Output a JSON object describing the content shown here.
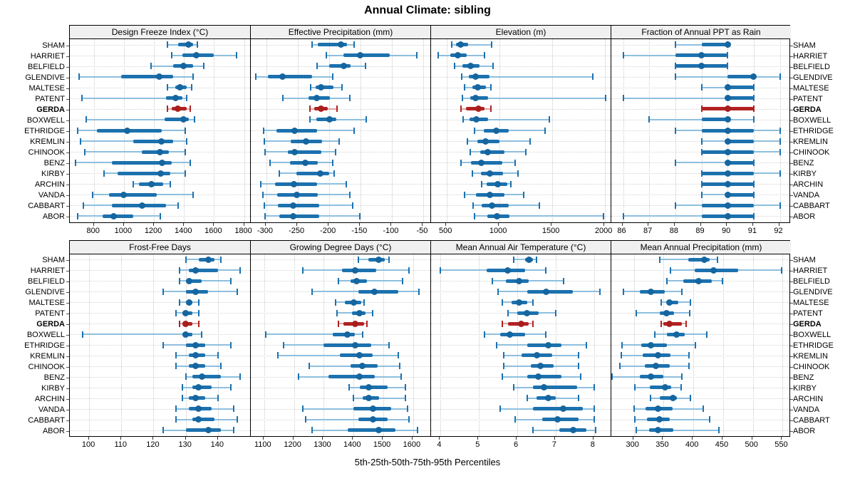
{
  "title": "Annual Climate: sibling",
  "caption": "5th-25th-50th-75th-95th Percentiles",
  "highlight_station": "GERDA",
  "stations": [
    "SHAM",
    "HARRIET",
    "BELFIELD",
    "GLENDIVE",
    "MALTESE",
    "PATENT",
    "GERDA",
    "BOXWELL",
    "ETHRIDGE",
    "KREMLIN",
    "CHINOOK",
    "BENZ",
    "KIRBY",
    "ARCHIN",
    "VANDA",
    "CABBART",
    "ABOR"
  ],
  "colors": {
    "blue": "#1c71ae",
    "blue_light": "#8ebfdf",
    "blue_dot": "#15659f",
    "red": "#b22222",
    "red_light": "#dca3a3",
    "red_dot": "#a81e1e",
    "header_bg": "#f0f0f0",
    "grid": "#c9c9c9"
  },
  "chart_data": {
    "type": "dot-whisker-trellis",
    "percentiles": [
      "5th",
      "25th",
      "50th",
      "75th",
      "95th"
    ],
    "legend_position": "none",
    "grid": "dotted",
    "panels": [
      {
        "title": "Design Freeze Index (°C)",
        "grid_row": 0,
        "grid_col": 0,
        "ticks": [
          800,
          1000,
          1200,
          1400,
          1600,
          1800
        ],
        "domain": [
          640,
          1840
        ],
        "series": [
          [
            1290,
            1360,
            1430,
            1460,
            1490
          ],
          [
            1320,
            1390,
            1480,
            1600,
            1750
          ],
          [
            1180,
            1330,
            1395,
            1460,
            1530
          ],
          [
            700,
            980,
            1235,
            1330,
            1460
          ],
          [
            1290,
            1340,
            1375,
            1420,
            1450
          ],
          [
            720,
            1280,
            1345,
            1390,
            1420
          ],
          [
            1290,
            1320,
            1360,
            1420,
            1440
          ],
          [
            750,
            1270,
            1395,
            1430,
            1470
          ],
          [
            690,
            820,
            1020,
            1250,
            1410
          ],
          [
            710,
            1060,
            1250,
            1330,
            1420
          ],
          [
            740,
            1120,
            1240,
            1300,
            1410
          ],
          [
            680,
            920,
            1255,
            1320,
            1440
          ],
          [
            870,
            960,
            1245,
            1310,
            1410
          ],
          [
            1060,
            1100,
            1185,
            1260,
            1310
          ],
          [
            790,
            900,
            1000,
            1220,
            1460
          ],
          [
            730,
            920,
            1120,
            1280,
            1360
          ],
          [
            690,
            860,
            930,
            1060,
            1240
          ]
        ]
      },
      {
        "title": "Effective Precipitation (mm)",
        "grid_row": 0,
        "grid_col": 1,
        "ticks": [
          -300,
          -250,
          -200,
          -150,
          -100,
          -50
        ],
        "domain": [
          -325,
          -38
        ],
        "series": [
          [
            -227,
            -218,
            -181,
            -172,
            -161
          ],
          [
            -205,
            -178,
            -151,
            -104,
            -61
          ],
          [
            -219,
            -200,
            -177,
            -166,
            -142
          ],
          [
            -317,
            -298,
            -275,
            -228,
            -195
          ],
          [
            -230,
            -222,
            -213,
            -193,
            -180
          ],
          [
            -274,
            -233,
            -220,
            -199,
            -167
          ],
          [
            -231,
            -224,
            -213,
            -202,
            -188
          ],
          [
            -231,
            -221,
            -200,
            -189,
            -141
          ],
          [
            -305,
            -284,
            -255,
            -219,
            -161
          ],
          [
            -303,
            -262,
            -237,
            -211,
            -184
          ],
          [
            -302,
            -266,
            -255,
            -213,
            -190
          ],
          [
            -294,
            -263,
            -238,
            -218,
            -195
          ],
          [
            -280,
            -252,
            -214,
            -200,
            -192
          ],
          [
            -309,
            -286,
            -256,
            -219,
            -173
          ],
          [
            -306,
            -283,
            -252,
            -218,
            -167
          ],
          [
            -303,
            -282,
            -257,
            -216,
            -163
          ],
          [
            -302,
            -280,
            -257,
            -216,
            -151
          ]
        ]
      },
      {
        "title": "Elevation (m)",
        "grid_row": 0,
        "grid_col": 2,
        "ticks": [
          500,
          1000,
          1500,
          2000
        ],
        "domain": [
          350,
          2060
        ],
        "series": [
          [
            545,
            585,
            630,
            700,
            925
          ],
          [
            420,
            530,
            605,
            690,
            855
          ],
          [
            575,
            650,
            725,
            810,
            935
          ],
          [
            640,
            710,
            775,
            905,
            1885
          ],
          [
            665,
            745,
            790,
            870,
            920
          ],
          [
            645,
            720,
            775,
            890,
            2005
          ],
          [
            635,
            680,
            800,
            855,
            915
          ],
          [
            655,
            715,
            780,
            890,
            1475
          ],
          [
            760,
            850,
            970,
            1085,
            1430
          ],
          [
            695,
            790,
            870,
            1000,
            1290
          ],
          [
            720,
            815,
            885,
            1045,
            1250
          ],
          [
            635,
            730,
            825,
            1025,
            1145
          ],
          [
            740,
            820,
            910,
            1030,
            1175
          ],
          [
            830,
            880,
            980,
            1070,
            1105
          ],
          [
            670,
            775,
            910,
            1045,
            1230
          ],
          [
            750,
            830,
            925,
            1085,
            1375
          ],
          [
            765,
            885,
            975,
            1095,
            1985
          ]
        ]
      },
      {
        "title": "Fraction of Annual PPT as Rain",
        "grid_row": 0,
        "grid_col": 3,
        "ticks": [
          86,
          87,
          88,
          89,
          90,
          91,
          92
        ],
        "domain": [
          85.55,
          92.45
        ],
        "series": [
          [
            88,
            89,
            90,
            90,
            90
          ],
          [
            86,
            88,
            89,
            90,
            90
          ],
          [
            88,
            88,
            89,
            90,
            90
          ],
          [
            88,
            90,
            91,
            91,
            92
          ],
          [
            89,
            90,
            90,
            91,
            91
          ],
          [
            86,
            90,
            90,
            91,
            91
          ],
          [
            89,
            89,
            90,
            91,
            91
          ],
          [
            87,
            89,
            90,
            90,
            91
          ],
          [
            88,
            89,
            90,
            91,
            92
          ],
          [
            89,
            90,
            90,
            91,
            92
          ],
          [
            89,
            89,
            90,
            91,
            92
          ],
          [
            88,
            90,
            90,
            91,
            91
          ],
          [
            89,
            89,
            90,
            91,
            92
          ],
          [
            89,
            89,
            90,
            91,
            91
          ],
          [
            89,
            90,
            90,
            91,
            91
          ],
          [
            88,
            89,
            90,
            91,
            92
          ],
          [
            86,
            89,
            90,
            91,
            91
          ]
        ]
      },
      {
        "title": "Frost-Free Days",
        "grid_row": 1,
        "grid_col": 0,
        "ticks": [
          100,
          110,
          120,
          130,
          140
        ],
        "domain": [
          94,
          150
        ],
        "series": [
          [
            130,
            134,
            137,
            139,
            141
          ],
          [
            128,
            131,
            133,
            140,
            147
          ],
          [
            128,
            130,
            131,
            135,
            144
          ],
          [
            123,
            130,
            133,
            137,
            146
          ],
          [
            128,
            130,
            131,
            132,
            134
          ],
          [
            127,
            129,
            130,
            132,
            134
          ],
          [
            128,
            129,
            130,
            132,
            134
          ],
          [
            98,
            129,
            130,
            132,
            135
          ],
          [
            123,
            130,
            133,
            136,
            144
          ],
          [
            127,
            131,
            133,
            136,
            140
          ],
          [
            127,
            131,
            133,
            136,
            141
          ],
          [
            130,
            132,
            135,
            141,
            147
          ],
          [
            129,
            132,
            134,
            138,
            144
          ],
          [
            129,
            131,
            133,
            136,
            140
          ],
          [
            127,
            131,
            134,
            138,
            145
          ],
          [
            127,
            132,
            134,
            139,
            146
          ],
          [
            123,
            130,
            137,
            141,
            145
          ]
        ]
      },
      {
        "title": "Growing Degree Days (°C)",
        "grid_row": 1,
        "grid_col": 1,
        "ticks": [
          1100,
          1200,
          1300,
          1400,
          1500,
          1600
        ],
        "domain": [
          1055,
          1660
        ],
        "series": [
          [
            1415,
            1450,
            1485,
            1505,
            1520
          ],
          [
            1230,
            1360,
            1405,
            1475,
            1585
          ],
          [
            1350,
            1390,
            1410,
            1445,
            1565
          ],
          [
            1260,
            1415,
            1470,
            1550,
            1620
          ],
          [
            1340,
            1370,
            1400,
            1425,
            1435
          ],
          [
            1345,
            1395,
            1420,
            1440,
            1465
          ],
          [
            1350,
            1365,
            1405,
            1435,
            1445
          ],
          [
            1105,
            1330,
            1380,
            1405,
            1430
          ],
          [
            1165,
            1300,
            1405,
            1460,
            1520
          ],
          [
            1145,
            1355,
            1420,
            1465,
            1550
          ],
          [
            1250,
            1390,
            1430,
            1480,
            1555
          ],
          [
            1215,
            1315,
            1420,
            1470,
            1560
          ],
          [
            1385,
            1420,
            1450,
            1515,
            1575
          ],
          [
            1400,
            1430,
            1450,
            1485,
            1575
          ],
          [
            1230,
            1400,
            1465,
            1525,
            1580
          ],
          [
            1240,
            1415,
            1465,
            1515,
            1585
          ],
          [
            1260,
            1380,
            1485,
            1540,
            1615
          ]
        ]
      },
      {
        "title": "Mean Annual Air Temperature (°C)",
        "grid_row": 1,
        "grid_col": 2,
        "ticks": [
          4,
          5,
          6,
          7,
          8
        ],
        "domain": [
          3.75,
          8.45
        ],
        "series": [
          [
            5.9,
            6.2,
            6.3,
            6.4,
            6.5
          ],
          [
            4.0,
            5.2,
            5.75,
            6.2,
            6.75
          ],
          [
            5.35,
            5.7,
            6.05,
            6.3,
            7.2
          ],
          [
            5.5,
            6.25,
            6.75,
            7.45,
            8.15
          ],
          [
            5.6,
            5.85,
            6.05,
            6.25,
            6.4
          ],
          [
            5.75,
            6.0,
            6.25,
            6.55,
            7.0
          ],
          [
            5.6,
            5.75,
            6.1,
            6.3,
            6.4
          ],
          [
            5.15,
            5.55,
            5.8,
            6.2,
            6.75
          ],
          [
            5.45,
            6.25,
            6.8,
            7.15,
            7.8
          ],
          [
            5.65,
            6.1,
            6.5,
            6.9,
            7.6
          ],
          [
            5.65,
            6.35,
            6.6,
            6.95,
            7.6
          ],
          [
            5.6,
            6.25,
            6.55,
            7.15,
            7.65
          ],
          [
            5.9,
            6.4,
            6.7,
            7.55,
            8.0
          ],
          [
            6.25,
            6.5,
            6.8,
            7.0,
            7.6
          ],
          [
            5.55,
            6.4,
            7.2,
            7.7,
            8.0
          ],
          [
            5.95,
            6.65,
            7.05,
            7.6,
            8.0
          ],
          [
            6.4,
            7.1,
            7.45,
            7.8,
            8.05
          ]
        ]
      },
      {
        "title": "Mean Annual Precipitation (mm)",
        "grid_row": 1,
        "grid_col": 3,
        "ticks": [
          300,
          350,
          400,
          450,
          500,
          550
        ],
        "domain": [
          262,
          565
        ],
        "series": [
          [
            344,
            391,
            418,
            427,
            440
          ],
          [
            362,
            402,
            434,
            475,
            548
          ],
          [
            356,
            383,
            409,
            431,
            449
          ],
          [
            282,
            310,
            328,
            352,
            381
          ],
          [
            346,
            356,
            360,
            375,
            395
          ],
          [
            304,
            344,
            355,
            367,
            394
          ],
          [
            346,
            350,
            360,
            380,
            388
          ],
          [
            335,
            355,
            371,
            385,
            423
          ],
          [
            280,
            312,
            328,
            355,
            403
          ],
          [
            279,
            315,
            340,
            362,
            393
          ],
          [
            276,
            318,
            337,
            360,
            392
          ],
          [
            263,
            310,
            328,
            350,
            380
          ],
          [
            301,
            327,
            352,
            363,
            379
          ],
          [
            328,
            343,
            365,
            372,
            395
          ],
          [
            300,
            320,
            341,
            365,
            417
          ],
          [
            301,
            322,
            343,
            360,
            427
          ],
          [
            304,
            325,
            341,
            366,
            443
          ]
        ]
      }
    ]
  }
}
